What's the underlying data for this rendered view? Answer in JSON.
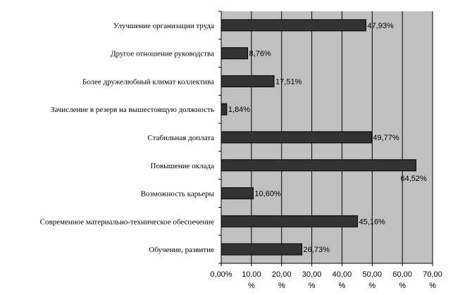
{
  "chart_data": {
    "type": "bar",
    "orientation": "horizontal",
    "categories": [
      "Улучшение организации труда",
      "Другое отношение руководства",
      "Более дружелюбный климат коллектива",
      "Зачисление в резерв на вышестоящую должность",
      "Стабильная доплата",
      "Повышение оклада",
      "Возможность карьеры",
      "Современное материально-техническое обеспечение",
      "Обучение, развитие"
    ],
    "values": [
      47.93,
      8.76,
      17.51,
      1.84,
      49.77,
      64.52,
      10.6,
      45.16,
      26.73
    ],
    "value_labels": [
      "47,93%",
      "8,76%",
      "17,51%",
      "1,84%",
      "49,77%",
      "64,52%",
      "10,60%",
      "45,16%",
      "26,73%"
    ],
    "x_ticks": [
      0,
      10,
      20,
      30,
      40,
      50,
      60,
      70
    ],
    "x_tick_labels": [
      [
        "0,00%"
      ],
      [
        "10,00",
        "%"
      ],
      [
        "20,00",
        "%"
      ],
      [
        "30,00",
        "%"
      ],
      [
        "40,00",
        "%"
      ],
      [
        "50,00",
        "%"
      ],
      [
        "60,00",
        "%"
      ],
      [
        "70,00",
        "%"
      ]
    ],
    "xlim": [
      0,
      70
    ],
    "title": "",
    "xlabel": "",
    "ylabel": "",
    "grid": true,
    "legend": "none",
    "colors": {
      "plot_background": "#c0c0c0",
      "bar_fill": "#333333",
      "bar_stroke": "#000000",
      "gridline": "#000000"
    }
  }
}
